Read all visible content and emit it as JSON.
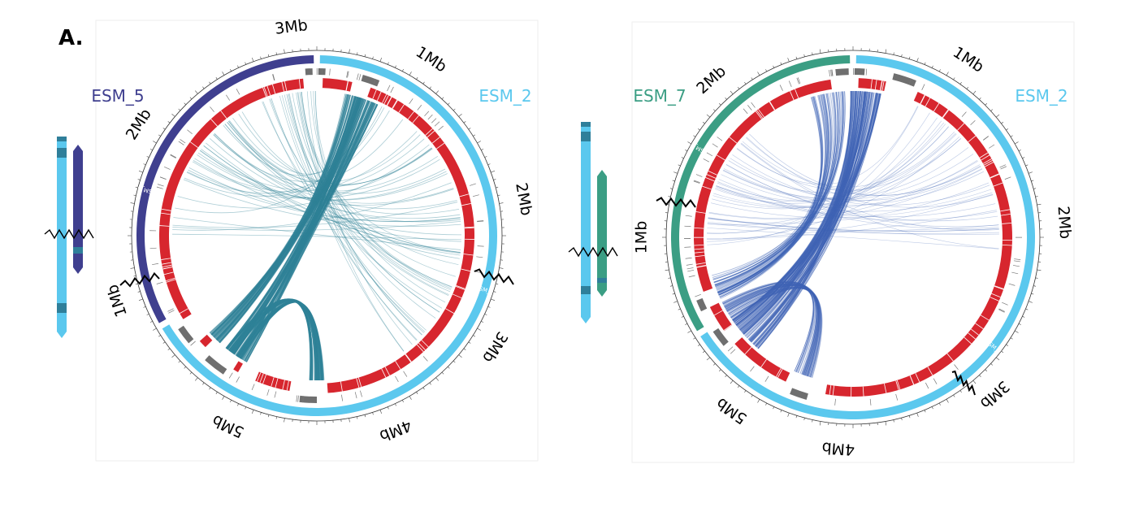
{
  "figure_label": "A.",
  "colors": {
    "esm2": "#5bc8ee",
    "esm5": "#3f3f8f",
    "esm7": "#3b9e84",
    "red_track": "#d7262e",
    "gray_track": "#6f6f6f",
    "links_left": "#2f8297",
    "links_right": "#3f63b5"
  },
  "panels": [
    {
      "id": "left",
      "query_name": "ESM_5",
      "ref_name": "ESM_2",
      "query_inner_label": "ESM_5",
      "ref_inner_label": "ESM_2",
      "query_scale_labels": [
        "3Mb",
        "2Mb",
        "1Mb"
      ],
      "ref_scale_labels": [
        "1Mb",
        "2Mb",
        "3Mb",
        "4Mb",
        "5Mb"
      ]
    },
    {
      "id": "right",
      "query_name": "ESM_7",
      "ref_name": "ESM_2",
      "query_inner_label": "ESM_7",
      "ref_inner_label": "ESM_2",
      "query_scale_labels": [
        "2Mb",
        "1Mb"
      ],
      "ref_scale_labels": [
        "1Mb",
        "2Mb",
        "3Mb",
        "4Mb",
        "5Mb"
      ]
    }
  ]
}
